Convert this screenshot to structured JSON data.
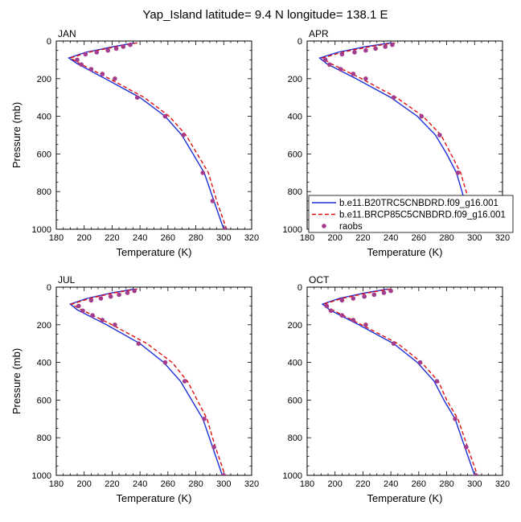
{
  "title": "Yap_Island  latitude= 9.4 N longitude= 138.1 E",
  "colors": {
    "model1": "#1f2fd6",
    "model2": "#e01010",
    "obs": "#a33c8c"
  },
  "legend": {
    "items": [
      {
        "label": "b.e11.B20TRC5CNBDRD.f09_g16.001",
        "style": "solid-blue-line"
      },
      {
        "label": "b.e11.BRCP85C5CNBDRD.f09_g16.001",
        "style": "dashed-red-line"
      },
      {
        "label": "raobs",
        "style": "purple-dot"
      }
    ]
  },
  "chart_data": [
    {
      "type": "line",
      "panel_label": "JAN",
      "xlabel": "Temperature (K)",
      "ylabel": "Pressure (mb)",
      "xlim": [
        180,
        320
      ],
      "ylim": [
        1000,
        0
      ],
      "y_inverted": true,
      "xticks": [
        180,
        200,
        220,
        240,
        260,
        280,
        300,
        320
      ],
      "yticks": [
        0,
        200,
        400,
        600,
        800,
        1000
      ],
      "series": [
        {
          "name": "b.e11.B20TRC5CNBDRD.f09_g16.001",
          "x": [
            236,
            221,
            201,
            189,
            195,
            215,
            240,
            258,
            270,
            278,
            286,
            293,
            300
          ],
          "y": [
            10,
            30,
            60,
            90,
            120,
            200,
            300,
            400,
            500,
            600,
            700,
            850,
            1000
          ]
        },
        {
          "name": "b.e11.BRCP85C5CNBDRD.f09_g16.001",
          "x": [
            238,
            223,
            203,
            190,
            197,
            218,
            243,
            261,
            273,
            281,
            289,
            295,
            302
          ],
          "y": [
            10,
            30,
            60,
            90,
            120,
            200,
            300,
            400,
            500,
            600,
            700,
            850,
            1000
          ]
        },
        {
          "name": "raobs",
          "x": [
            233,
            228,
            223,
            217,
            209,
            201,
            195,
            198,
            205,
            213,
            222,
            238,
            258,
            271,
            285,
            292,
            301
          ],
          "y": [
            20,
            30,
            40,
            50,
            60,
            70,
            100,
            125,
            150,
            175,
            200,
            300,
            400,
            500,
            700,
            850,
            1000
          ]
        }
      ]
    },
    {
      "type": "line",
      "panel_label": "APR",
      "xlabel": "Temperature (K)",
      "ylabel": "",
      "xlim": [
        180,
        320
      ],
      "ylim": [
        1000,
        0
      ],
      "y_inverted": true,
      "xticks": [
        180,
        200,
        220,
        240,
        260,
        280,
        300,
        320
      ],
      "yticks": [
        0,
        200,
        400,
        600,
        800,
        1000
      ],
      "series": [
        {
          "name": "b.e11.B20TRC5CNBDRD.f09_g16.001",
          "x": [
            240,
            222,
            202,
            189,
            194,
            215,
            240,
            259,
            272,
            280,
            287,
            293,
            300
          ],
          "y": [
            10,
            30,
            60,
            90,
            120,
            200,
            300,
            400,
            500,
            600,
            700,
            850,
            1000
          ]
        },
        {
          "name": "b.e11.BRCP85C5CNBDRD.f09_g16.001",
          "x": [
            243,
            225,
            205,
            191,
            197,
            219,
            244,
            263,
            276,
            283,
            290,
            296,
            302
          ],
          "y": [
            10,
            30,
            60,
            90,
            120,
            200,
            300,
            400,
            500,
            600,
            700,
            850,
            1000
          ]
        },
        {
          "name": "raobs",
          "x": [
            241,
            236,
            229,
            222,
            214,
            205,
            193,
            196,
            204,
            213,
            222,
            242,
            262,
            275,
            288,
            294,
            301
          ],
          "y": [
            20,
            30,
            40,
            50,
            60,
            70,
            100,
            125,
            150,
            175,
            200,
            300,
            400,
            500,
            700,
            850,
            1000
          ]
        }
      ]
    },
    {
      "type": "line",
      "panel_label": "JUL",
      "xlabel": "Temperature (K)",
      "ylabel": "Pressure (mb)",
      "xlim": [
        180,
        320
      ],
      "ylim": [
        1000,
        0
      ],
      "y_inverted": true,
      "xticks": [
        180,
        200,
        220,
        240,
        260,
        280,
        300,
        320
      ],
      "yticks": [
        0,
        200,
        400,
        600,
        800,
        1000
      ],
      "series": [
        {
          "name": "b.e11.B20TRC5CNBDRD.f09_g16.001",
          "x": [
            236,
            220,
            202,
            190,
            195,
            216,
            240,
            257,
            269,
            277,
            285,
            292,
            299
          ],
          "y": [
            10,
            30,
            60,
            90,
            120,
            200,
            300,
            400,
            500,
            600,
            700,
            850,
            1000
          ]
        },
        {
          "name": "b.e11.BRCP85C5CNBDRD.f09_g16.001",
          "x": [
            238,
            222,
            204,
            191,
            198,
            220,
            245,
            263,
            274,
            281,
            288,
            294,
            301
          ],
          "y": [
            10,
            30,
            60,
            90,
            120,
            200,
            300,
            400,
            500,
            600,
            700,
            850,
            1000
          ]
        },
        {
          "name": "raobs",
          "x": [
            236,
            231,
            225,
            219,
            212,
            205,
            196,
            199,
            206,
            213,
            222,
            239,
            258,
            272,
            286,
            293,
            300
          ],
          "y": [
            20,
            30,
            40,
            50,
            60,
            70,
            100,
            125,
            150,
            175,
            200,
            300,
            400,
            500,
            700,
            850,
            1000
          ]
        }
      ]
    },
    {
      "type": "line",
      "panel_label": "OCT",
      "xlabel": "Temperature (K)",
      "ylabel": "",
      "xlim": [
        180,
        320
      ],
      "ylim": [
        1000,
        0
      ],
      "y_inverted": true,
      "xticks": [
        180,
        200,
        220,
        240,
        260,
        280,
        300,
        320
      ],
      "yticks": [
        0,
        200,
        400,
        600,
        800,
        1000
      ],
      "series": [
        {
          "name": "b.e11.B20TRC5CNBDRD.f09_g16.001",
          "x": [
            238,
            222,
            203,
            191,
            196,
            217,
            242,
            259,
            271,
            278,
            286,
            293,
            300
          ],
          "y": [
            10,
            30,
            60,
            90,
            120,
            200,
            300,
            400,
            500,
            600,
            700,
            850,
            1000
          ]
        },
        {
          "name": "b.e11.BRCP85C5CNBDRD.f09_g16.001",
          "x": [
            240,
            224,
            205,
            192,
            198,
            219,
            245,
            262,
            274,
            280,
            288,
            295,
            302
          ],
          "y": [
            10,
            30,
            60,
            90,
            120,
            200,
            300,
            400,
            500,
            600,
            700,
            850,
            1000
          ]
        },
        {
          "name": "raobs",
          "x": [
            240,
            235,
            228,
            221,
            213,
            205,
            194,
            197,
            205,
            213,
            222,
            242,
            261,
            273,
            286,
            294,
            301
          ],
          "y": [
            20,
            30,
            40,
            50,
            60,
            70,
            100,
            125,
            150,
            175,
            200,
            300,
            400,
            500,
            700,
            850,
            1000
          ]
        }
      ]
    }
  ]
}
